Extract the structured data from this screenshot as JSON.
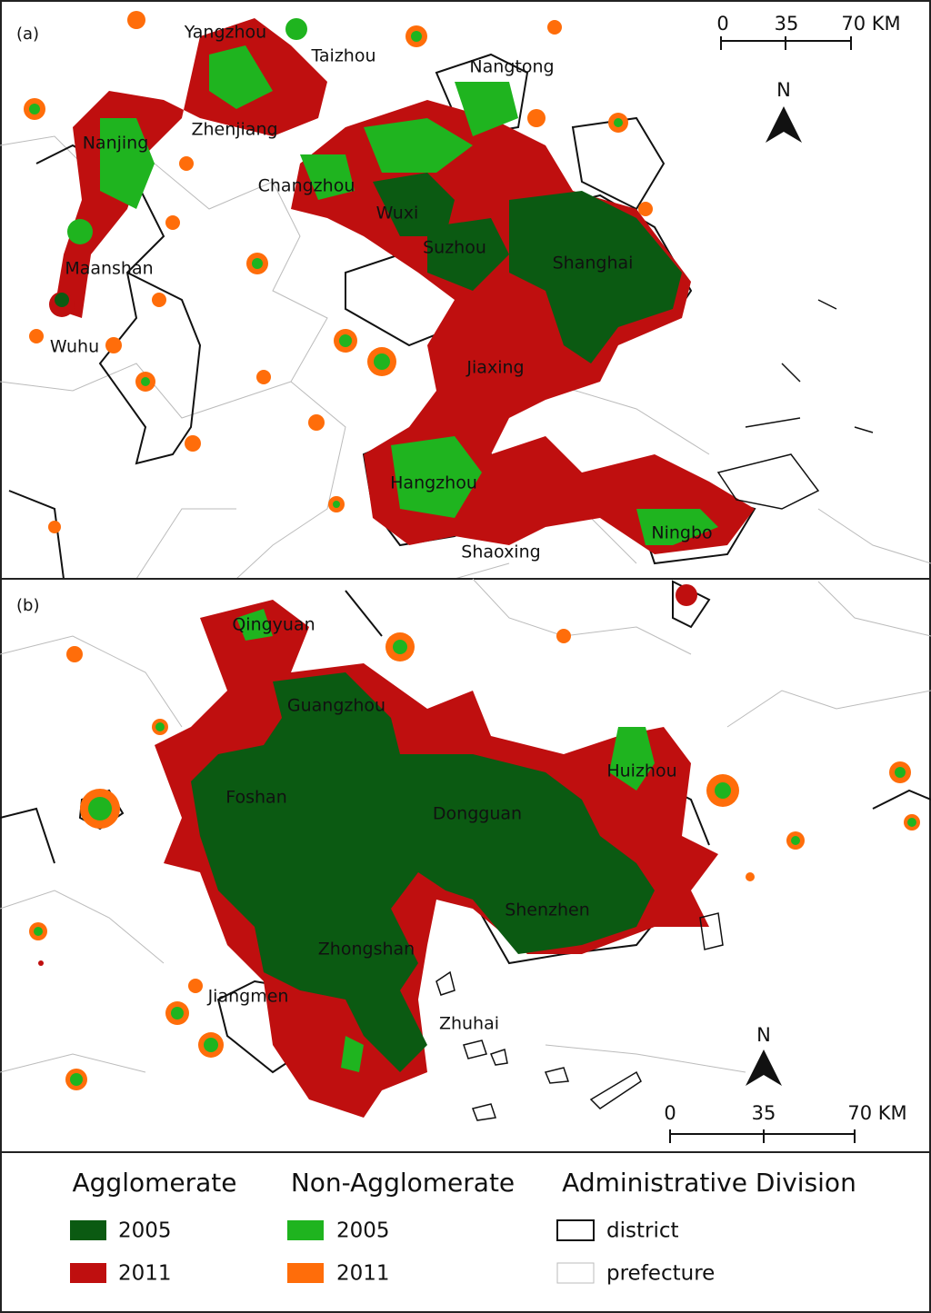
{
  "panels": [
    {
      "label": "(a)",
      "cities": [
        "Yangzhou",
        "Taizhou",
        "Nangtong",
        "Nanjing",
        "Zhenjiang",
        "Changzhou",
        "Wuxi",
        "Suzhou",
        "Shanghai",
        "Maanshan",
        "Wuhu",
        "Jiaxing",
        "Hangzhou",
        "Shaoxing",
        "Ningbo"
      ],
      "scale_bar": [
        "0",
        "35",
        "70 KM"
      ],
      "north": "N"
    },
    {
      "label": "(b)",
      "cities": [
        "Qingyuan",
        "Guangzhou",
        "Huizhou",
        "Foshan",
        "Dongguan",
        "Shenzhen",
        "Zhongshan",
        "Jiangmen",
        "Zhuhai"
      ],
      "scale_bar": [
        "0",
        "35",
        "70 KM"
      ],
      "north": "N"
    }
  ],
  "legend": [
    {
      "title": "Agglomerate",
      "items": [
        "2005",
        "2011"
      ]
    },
    {
      "title": "Non-Agglomerate",
      "items": [
        "2005",
        "2011"
      ]
    },
    {
      "title": "Administrative Division",
      "items": [
        "district",
        "prefecture"
      ]
    }
  ]
}
